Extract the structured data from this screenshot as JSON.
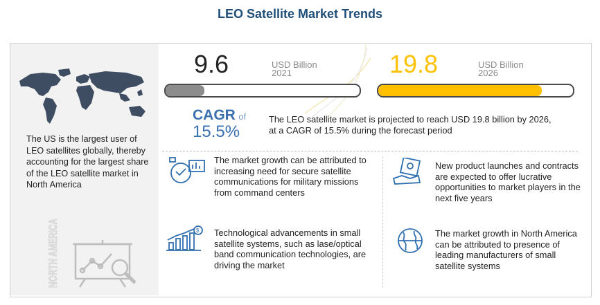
{
  "title": "LEO Satellite Market Trends",
  "left_panel": {
    "text": "The US is the largest user of LEO satellites globally, thereby accounting for the largest share of the LEO satellite market in North America",
    "region_label": "NORTH AMERICA"
  },
  "stats": [
    {
      "value": "9.6",
      "unit": "USD Billion",
      "year": "2021",
      "bar_fill_fraction": 0.2,
      "fill_color": "#8c8c8c",
      "number_color": "#222222"
    },
    {
      "value": "19.8",
      "unit": "USD Billion",
      "year": "2026",
      "bar_fill_fraction": 0.84,
      "fill_color": "#ffc000",
      "number_color": "#ffc000"
    }
  ],
  "cagr": {
    "label": "CAGR",
    "of": "of",
    "value": "15.5%",
    "text": "The LEO satellite market is projected to reach USD 19.8 billion by 2026, at a CAGR of 15.5% during the forecast period"
  },
  "insights": [
    {
      "icon": "secure-communications-icon",
      "text": "The market growth can be attributed to increasing need for secure satellite communications for military missions from command centers"
    },
    {
      "icon": "product-launch-icon",
      "text": "New product launches and contracts are expected to offer lucrative opportunities to market players in the next five years"
    },
    {
      "icon": "growth-chart-icon",
      "text": "Technological advancements in small satellite systems, such as lase/optical band communication technologies, are driving the market"
    },
    {
      "icon": "globe-icon",
      "text": "The market growth in North America can be attributed to presence of leading manufacturers of small satellite systems"
    }
  ],
  "colors": {
    "title": "#1f4e79",
    "accent_blue": "#3a6fb0",
    "accent_yellow": "#ffc000"
  }
}
